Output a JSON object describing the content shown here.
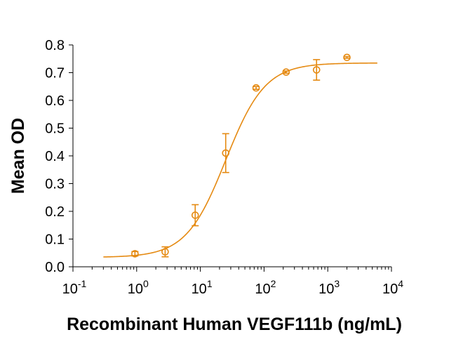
{
  "chart_data": {
    "type": "scatter",
    "title": "",
    "xlabel": "Recombinant Human VEGF111b (ng/mL)",
    "ylabel": "Mean OD",
    "x_scale": "log",
    "xlim": [
      0.1,
      10000
    ],
    "ylim": [
      0,
      0.8
    ],
    "x_ticks": [
      {
        "base": "10",
        "exp": "-1"
      },
      {
        "base": "10",
        "exp": "0"
      },
      {
        "base": "10",
        "exp": "1"
      },
      {
        "base": "10",
        "exp": "2"
      },
      {
        "base": "10",
        "exp": "3"
      },
      {
        "base": "10",
        "exp": "4"
      }
    ],
    "y_ticks": [
      "0.0",
      "0.1",
      "0.2",
      "0.3",
      "0.4",
      "0.5",
      "0.6",
      "0.7",
      "0.8"
    ],
    "grid": false,
    "series": [
      {
        "color": "#E58A12",
        "x": [
          0.94,
          2.8,
          8.3,
          25,
          75,
          222,
          667,
          2000
        ],
        "y": [
          0.047,
          0.054,
          0.186,
          0.41,
          0.645,
          0.702,
          0.71,
          0.755
        ],
        "error": [
          0.008,
          0.018,
          0.038,
          0.07,
          0.005,
          0.004,
          0.037,
          0.003
        ]
      }
    ],
    "fit": {
      "model": "4PL",
      "bottom": 0.034,
      "top": 0.735,
      "ec50": 25,
      "hill": 1.4
    }
  }
}
